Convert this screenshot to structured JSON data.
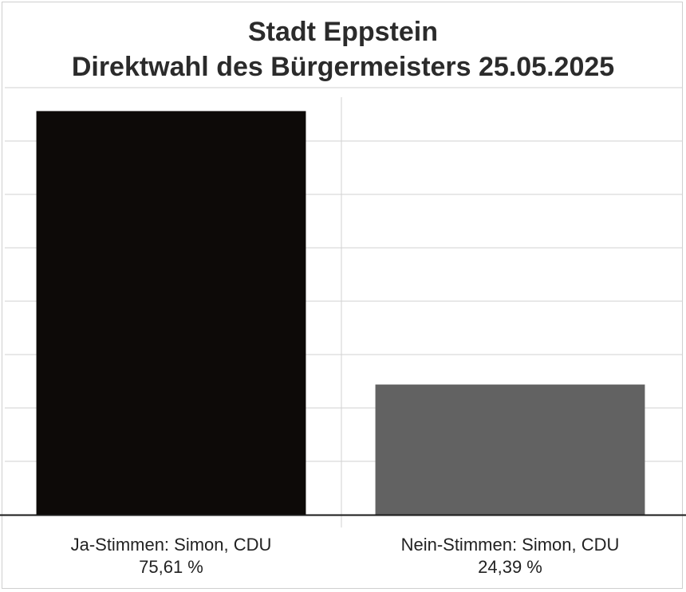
{
  "chart_data": {
    "type": "bar",
    "title": "Stadt Eppstein",
    "subtitle": "Direktwahl des Bürgermeisters 25.05.2025",
    "xlabel": "",
    "ylabel": "",
    "ylim": [
      0,
      80
    ],
    "grid": true,
    "categories": [
      "Ja-Stimmen: Simon, CDU",
      "Nein-Stimmen: Simon, CDU"
    ],
    "values": [
      75.61,
      24.39
    ],
    "value_labels": [
      "75,61 %",
      "24,39 %"
    ],
    "colors": [
      "#0d0a08",
      "#626262"
    ]
  }
}
